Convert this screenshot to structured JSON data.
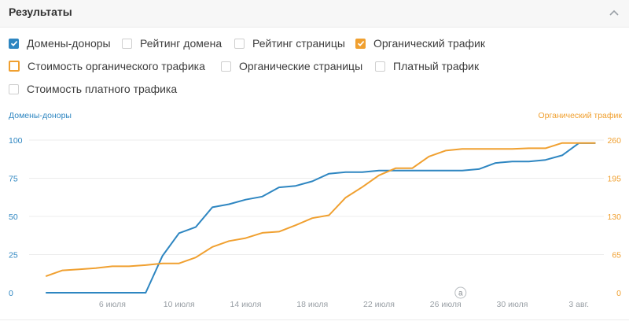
{
  "header": {
    "title": "Результаты"
  },
  "options": [
    {
      "label": "Домены-доноры",
      "state": "checked-blue"
    },
    {
      "label": "Рейтинг домена",
      "state": "unchecked"
    },
    {
      "label": "Рейтинг страницы",
      "state": "unchecked"
    },
    {
      "label": "Органический трафик",
      "state": "checked-orange"
    },
    {
      "label": "Стоимость органического трафика",
      "state": "outlined-orange"
    },
    {
      "label": "Органические страницы",
      "state": "unchecked"
    },
    {
      "label": "Платный трафик",
      "state": "unchecked"
    },
    {
      "label": "Стоимость платного трафика",
      "state": "unchecked"
    }
  ],
  "chart_data": {
    "type": "line",
    "left_axis_title": "Домены-доноры",
    "right_axis_title": "Органический трафик",
    "y_left_ticks": [
      "0",
      "25",
      "50",
      "75",
      "100"
    ],
    "y_right_ticks": [
      "0",
      "65",
      "130",
      "195",
      "260"
    ],
    "ylim_left": [
      0,
      100
    ],
    "ylim_right": [
      0,
      260
    ],
    "x_ticks": [
      {
        "label": "6 июля",
        "day": 6
      },
      {
        "label": "10 июля",
        "day": 10
      },
      {
        "label": "14 июля",
        "day": 14
      },
      {
        "label": "18 июля",
        "day": 18
      },
      {
        "label": "22 июля",
        "day": 22
      },
      {
        "label": "26 июля",
        "day": 26
      },
      {
        "label": "30 июля",
        "day": 30
      },
      {
        "label": "3 авг.",
        "day": 34
      }
    ],
    "annotation": {
      "label": "a",
      "day": 26.9
    },
    "grid": true,
    "colors": {
      "left": "#2e86c1",
      "right": "#f0a030"
    },
    "series": [
      {
        "name": "Домены-доноры",
        "axis": "left",
        "days": [
          2,
          3,
          4,
          5,
          6,
          7,
          8,
          9,
          10,
          11,
          12,
          13,
          14,
          15,
          16,
          17,
          18,
          19,
          20,
          21,
          22,
          23,
          24,
          25,
          26,
          27,
          28,
          29,
          30,
          31,
          32,
          33,
          34,
          35
        ],
        "values": [
          0,
          0,
          0,
          0,
          0,
          0,
          0,
          24,
          39,
          43,
          56,
          58,
          61,
          63,
          69,
          70,
          73,
          78,
          79,
          79,
          80,
          80,
          80,
          80,
          80,
          80,
          81,
          85,
          86,
          86,
          87,
          90,
          98,
          98
        ]
      },
      {
        "name": "Органический трафик",
        "axis": "right",
        "days": [
          2,
          3,
          4,
          5,
          6,
          7,
          8,
          9,
          10,
          11,
          12,
          13,
          14,
          15,
          16,
          17,
          18,
          19,
          20,
          21,
          22,
          23,
          24,
          25,
          26,
          27,
          28,
          29,
          30,
          31,
          32,
          33,
          34,
          35
        ],
        "values": [
          28,
          38,
          40,
          42,
          45,
          45,
          47,
          50,
          50,
          60,
          78,
          88,
          93,
          102,
          104,
          115,
          127,
          132,
          162,
          180,
          200,
          212,
          212,
          232,
          242,
          245,
          245,
          245,
          245,
          246,
          246,
          255,
          255,
          255
        ]
      }
    ]
  }
}
